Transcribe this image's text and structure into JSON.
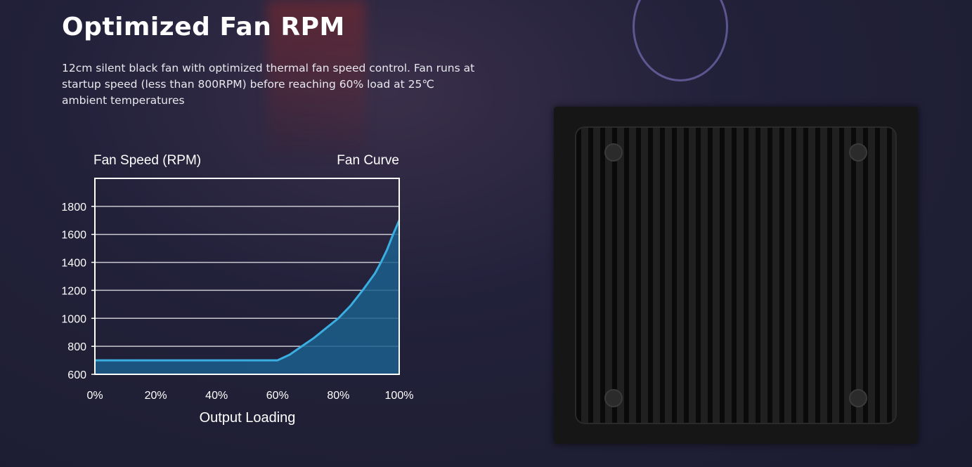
{
  "heading": "Optimized Fan RPM",
  "description": "12cm silent black fan with optimized thermal fan speed control. Fan runs at startup speed (less than 800RPM) before reaching 60% load at 25℃ ambient temperatures",
  "colors": {
    "curve": "#3aaee0",
    "fill": "#1b5f8c",
    "grid": "#c8c8d0"
  },
  "chart_data": {
    "type": "area",
    "title": "Fan Curve",
    "ylabel": "Fan Speed (RPM)",
    "xlabel": "Output Loading",
    "x": [
      0,
      10,
      20,
      30,
      40,
      50,
      60,
      64,
      68,
      72,
      76,
      80,
      84,
      88,
      92,
      94,
      96,
      98,
      100
    ],
    "y": [
      700,
      700,
      700,
      700,
      700,
      700,
      700,
      740,
      800,
      860,
      930,
      1000,
      1090,
      1200,
      1320,
      1400,
      1490,
      1600,
      1700
    ],
    "xticks": [
      "0%",
      "20%",
      "40%",
      "60%",
      "80%",
      "100%"
    ],
    "xtick_values": [
      0,
      20,
      40,
      60,
      80,
      100
    ],
    "yticks": [
      600,
      800,
      1000,
      1200,
      1400,
      1600,
      1800
    ],
    "xlim": [
      0,
      100
    ],
    "ylim": [
      600,
      2000
    ],
    "grid": "horizontal"
  }
}
